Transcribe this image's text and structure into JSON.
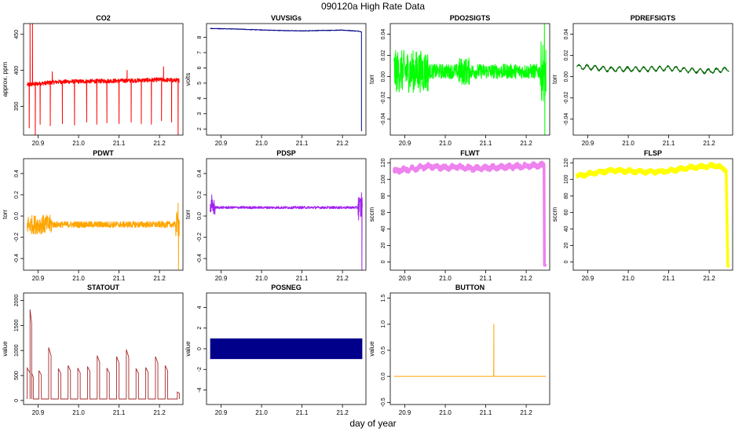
{
  "figure": {
    "title": "090120a   High Rate Data",
    "xlabel": "day of year"
  },
  "chart_data": [
    {
      "type": "line",
      "title": "CO2",
      "ylabel": "approx. ppm",
      "color": "#ff0000",
      "xlim": [
        20.864,
        21.258
      ],
      "ylim": [
        310,
        465
      ],
      "xticks": [
        20.9,
        21.0,
        21.1,
        21.2
      ],
      "yticks": [
        350,
        400,
        450
      ],
      "xticklabels": [
        "20.9",
        "21.0",
        "21.1",
        "21.2"
      ],
      "yticklabels": [
        "350",
        "400",
        "450"
      ],
      "x_start": 20.873,
      "x_end": 21.249,
      "baseline": [
        [
          20.873,
          380
        ],
        [
          20.95,
          384
        ],
        [
          21.05,
          385
        ],
        [
          21.15,
          386
        ],
        [
          21.2,
          387
        ],
        [
          21.245,
          386
        ]
      ],
      "noise": 3,
      "spikes_down": [
        [
          20.878,
          320
        ],
        [
          20.905,
          325
        ],
        [
          20.93,
          323
        ],
        [
          20.96,
          326
        ],
        [
          20.99,
          324
        ],
        [
          21.02,
          328
        ],
        [
          21.045,
          325
        ],
        [
          21.07,
          327
        ],
        [
          21.1,
          326
        ],
        [
          21.13,
          328
        ],
        [
          21.155,
          326
        ],
        [
          21.18,
          325
        ],
        [
          21.205,
          330
        ],
        [
          21.23,
          328
        ],
        [
          21.246,
          310
        ]
      ],
      "spikes_up": [
        [
          20.88,
          465
        ],
        [
          20.886,
          465
        ],
        [
          20.935,
          398
        ],
        [
          21.12,
          400
        ],
        [
          21.21,
          405
        ]
      ],
      "drops": [
        [
          20.893,
          310
        ],
        [
          21.246,
          310
        ]
      ]
    },
    {
      "type": "line",
      "title": "VUVSIGs",
      "ylabel": "volts",
      "color": "#00008b",
      "xlim": [
        20.864,
        21.258
      ],
      "ylim": [
        1.6,
        8.9
      ],
      "xticks": [
        20.9,
        21.0,
        21.1,
        21.2
      ],
      "yticks": [
        2,
        3,
        4,
        5,
        6,
        7,
        8
      ],
      "xticklabels": [
        "20.9",
        "21.0",
        "21.1",
        "21.2"
      ],
      "yticklabels": [
        "2",
        "3",
        "4",
        "5",
        "6",
        "7",
        "8"
      ],
      "x_start": 20.873,
      "x_end": 21.247,
      "baseline": [
        [
          20.873,
          8.58
        ],
        [
          20.93,
          8.55
        ],
        [
          20.98,
          8.5
        ],
        [
          21.04,
          8.45
        ],
        [
          21.1,
          8.42
        ],
        [
          21.15,
          8.45
        ],
        [
          21.2,
          8.47
        ],
        [
          21.24,
          8.4
        ],
        [
          21.246,
          8.35
        ]
      ],
      "noise": 0.02,
      "drops": [
        [
          21.247,
          1.85
        ]
      ]
    },
    {
      "type": "line",
      "title": "PDO2SIGTS",
      "ylabel": "torr",
      "color": "#00ff00",
      "xlim": [
        20.864,
        21.258
      ],
      "ylim": [
        -0.055,
        0.05
      ],
      "xticks": [
        20.9,
        21.0,
        21.1,
        21.2
      ],
      "yticks": [
        -0.04,
        -0.02,
        0.0,
        0.02,
        0.04
      ],
      "xticklabels": [
        "20.9",
        "21.0",
        "21.1",
        "21.2"
      ],
      "yticklabels": [
        "-0.04",
        "-0.02",
        "0.00",
        "0.02",
        "0.04"
      ],
      "x_start": 20.873,
      "x_end": 21.249,
      "baseline": [
        [
          20.873,
          0.005
        ],
        [
          21.249,
          0.005
        ]
      ],
      "noise": 0.007,
      "noise_burst": [
        [
          20.873,
          20.96,
          0.02
        ],
        [
          21.03,
          21.06,
          0.013
        ],
        [
          21.235,
          21.249,
          0.028
        ]
      ],
      "spikes_up": [
        [
          21.245,
          0.05
        ]
      ],
      "drops": [
        [
          21.246,
          -0.055
        ]
      ]
    },
    {
      "type": "line",
      "title": "PDREFSIGTS",
      "ylabel": "torr",
      "color": "#006400",
      "xlim": [
        20.864,
        21.258
      ],
      "ylim": [
        -0.055,
        0.05
      ],
      "xticks": [
        20.9,
        21.0,
        21.1,
        21.2
      ],
      "yticks": [
        -0.04,
        -0.02,
        0.0,
        0.02,
        0.04
      ],
      "xticklabels": [
        "20.9",
        "21.0",
        "21.1",
        "21.2"
      ],
      "yticklabels": [
        "-0.04",
        "-0.02",
        "0.00",
        "0.02",
        "0.04"
      ],
      "x_start": 20.873,
      "x_end": 21.249,
      "baseline": [
        [
          20.873,
          0.009
        ],
        [
          20.9,
          0.009
        ],
        [
          20.95,
          0.007
        ],
        [
          21.0,
          0.007
        ],
        [
          21.05,
          0.007
        ],
        [
          21.1,
          0.008
        ],
        [
          21.15,
          0.006
        ],
        [
          21.2,
          0.005
        ],
        [
          21.249,
          0.007
        ]
      ],
      "noise": 0.0008,
      "wave": [
        0.002,
        0.02
      ]
    },
    {
      "type": "line",
      "title": "PDWT",
      "ylabel": "torr",
      "color": "#ffa500",
      "xlim": [
        20.864,
        21.258
      ],
      "ylim": [
        -0.51,
        0.54
      ],
      "xticks": [
        20.9,
        21.0,
        21.1,
        21.2
      ],
      "yticks": [
        -0.4,
        -0.2,
        0.0,
        0.2,
        0.4
      ],
      "xticklabels": [
        "20.9",
        "21.0",
        "21.1",
        "21.2"
      ],
      "yticklabels": [
        "-0.4",
        "-0.2",
        "0.0",
        "0.2",
        "0.4"
      ],
      "x_start": 20.873,
      "x_end": 21.249,
      "baseline": [
        [
          20.873,
          -0.08
        ],
        [
          21.249,
          -0.08
        ]
      ],
      "noise": 0.03,
      "noise_burst": [
        [
          20.873,
          20.935,
          0.09
        ],
        [
          21.24,
          21.249,
          0.12
        ]
      ],
      "spikes_up": [
        [
          21.246,
          0.12
        ]
      ],
      "drops": [
        [
          21.247,
          -0.51
        ]
      ]
    },
    {
      "type": "line",
      "title": "PDSP",
      "ylabel": "torr",
      "color": "#a020f0",
      "xlim": [
        20.864,
        21.258
      ],
      "ylim": [
        -0.51,
        0.54
      ],
      "xticks": [
        20.9,
        21.0,
        21.1,
        21.2
      ],
      "yticks": [
        -0.4,
        -0.2,
        0.0,
        0.2,
        0.4
      ],
      "xticklabels": [
        "20.9",
        "21.0",
        "21.1",
        "21.2"
      ],
      "yticklabels": [
        "-0.4",
        "-0.2",
        "0.0",
        "0.2",
        "0.4"
      ],
      "x_start": 20.873,
      "x_end": 21.249,
      "baseline": [
        [
          20.873,
          0.08
        ],
        [
          21.249,
          0.08
        ]
      ],
      "noise": 0.012,
      "noise_burst": [
        [
          20.873,
          20.885,
          0.08
        ],
        [
          21.238,
          21.249,
          0.12
        ]
      ],
      "spikes_up": [
        [
          20.877,
          0.2
        ],
        [
          21.247,
          0.22
        ]
      ],
      "drops": [
        [
          21.248,
          -0.51
        ]
      ]
    },
    {
      "type": "line",
      "title": "FLWT",
      "ylabel": "sccm",
      "color": "#ee82ee",
      "xlim": [
        20.864,
        21.258
      ],
      "ylim": [
        -10,
        125
      ],
      "xticks": [
        20.9,
        21.0,
        21.1,
        21.2
      ],
      "yticks": [
        0,
        20,
        40,
        60,
        80,
        100,
        120
      ],
      "xticklabels": [
        "20.9",
        "21.0",
        "21.1",
        "21.2"
      ],
      "yticklabels": [
        "0",
        "20",
        "40",
        "60",
        "80",
        "100",
        "120"
      ],
      "x_start": 20.873,
      "x_end": 21.244,
      "baseline": [
        [
          20.873,
          110
        ],
        [
          20.92,
          113
        ],
        [
          20.96,
          116
        ],
        [
          21.0,
          114
        ],
        [
          21.03,
          115
        ],
        [
          21.07,
          113
        ],
        [
          21.1,
          114
        ],
        [
          21.15,
          115
        ],
        [
          21.2,
          116
        ],
        [
          21.24,
          117
        ]
      ],
      "noise": 2.5,
      "wave": [
        1.5,
        0.02
      ],
      "tail": [
        [
          21.244,
          117
        ],
        [
          21.245,
          -4
        ],
        [
          21.25,
          -4
        ]
      ]
    },
    {
      "type": "line",
      "title": "FLSP",
      "ylabel": "sccm",
      "color": "#ffff00",
      "xlim": [
        20.864,
        21.258
      ],
      "ylim": [
        -10,
        125
      ],
      "xticks": [
        20.9,
        21.0,
        21.1,
        21.2
      ],
      "yticks": [
        0,
        20,
        40,
        60,
        80,
        100,
        120
      ],
      "xticklabels": [
        "20.9",
        "21.0",
        "21.1",
        "21.2"
      ],
      "yticklabels": [
        "0",
        "20",
        "40",
        "60",
        "80",
        "100",
        "120"
      ],
      "x_start": 20.873,
      "x_end": 21.242,
      "baseline": [
        [
          20.873,
          104
        ],
        [
          20.92,
          108
        ],
        [
          20.96,
          111
        ],
        [
          21.0,
          110
        ],
        [
          21.05,
          109
        ],
        [
          21.1,
          110
        ],
        [
          21.15,
          114
        ],
        [
          21.2,
          116
        ],
        [
          21.22,
          117
        ],
        [
          21.235,
          112
        ],
        [
          21.242,
          111
        ]
      ],
      "noise": 2.2,
      "wave": [
        1.2,
        0.025
      ],
      "tail": [
        [
          21.242,
          111
        ],
        [
          21.246,
          -5
        ],
        [
          21.25,
          -5
        ]
      ]
    },
    {
      "type": "line",
      "title": "STATOUT",
      "ylabel": "value",
      "color": "#a52a2a",
      "xlim": [
        20.864,
        21.258
      ],
      "ylim": [
        -80,
        2150
      ],
      "xticks": [
        20.9,
        21.0,
        21.1,
        21.2
      ],
      "yticks": [
        0,
        500,
        1000,
        1500,
        2000
      ],
      "xticklabels": [
        "20.9",
        "21.0",
        "21.1",
        "21.2"
      ],
      "yticklabels": [
        "0",
        "500",
        "1000",
        "1500",
        "2000"
      ],
      "x_start": 20.873,
      "x_end": 21.249,
      "pulses": [
        [
          20.873,
          20.88,
          650
        ],
        [
          20.88,
          20.884,
          1820
        ],
        [
          20.884,
          20.888,
          550
        ],
        [
          20.902,
          20.908,
          600
        ],
        [
          20.926,
          20.932,
          1060
        ],
        [
          20.95,
          20.956,
          640
        ],
        [
          20.974,
          20.98,
          700
        ],
        [
          20.998,
          21.004,
          650
        ],
        [
          21.022,
          21.028,
          680
        ],
        [
          21.046,
          21.052,
          900
        ],
        [
          21.07,
          21.076,
          650
        ],
        [
          21.094,
          21.1,
          880
        ],
        [
          21.118,
          21.124,
          1020
        ],
        [
          21.142,
          21.148,
          640
        ],
        [
          21.166,
          21.172,
          660
        ],
        [
          21.19,
          21.196,
          880
        ],
        [
          21.214,
          21.22,
          700
        ],
        [
          21.244,
          21.249,
          170
        ]
      ],
      "baseline_value": 30
    },
    {
      "type": "area",
      "title": "POSNEG",
      "ylabel": "value",
      "color": "#00008b",
      "xlim": [
        20.864,
        21.258
      ],
      "ylim": [
        -5.4,
        5.4
      ],
      "xticks": [
        20.9,
        21.0,
        21.1,
        21.2
      ],
      "yticks": [
        -4,
        -2,
        0,
        2,
        4
      ],
      "xticklabels": [
        "20.9",
        "21.0",
        "21.1",
        "21.2"
      ],
      "yticklabels": [
        "-4",
        "-2",
        "0",
        "2",
        "4"
      ],
      "x_start": 20.873,
      "x_end": 21.249,
      "band": [
        -1,
        1
      ]
    },
    {
      "type": "line",
      "title": "BUTTON",
      "ylabel": "value",
      "color": "#ffa500",
      "xlim": [
        20.864,
        21.258
      ],
      "ylim": [
        -0.54,
        1.6
      ],
      "xticks": [
        20.9,
        21.0,
        21.1,
        21.2
      ],
      "yticks": [
        -0.5,
        0.0,
        0.5,
        1.0,
        1.5
      ],
      "xticklabels": [
        "20.9",
        "21.0",
        "21.1",
        "21.2"
      ],
      "yticklabels": [
        "-0.5",
        "0.0",
        "0.5",
        "1.0",
        "1.5"
      ],
      "x_start": 20.873,
      "x_end": 21.249,
      "baseline": [
        [
          20.873,
          0
        ],
        [
          21.249,
          0
        ]
      ],
      "noise": 0,
      "spikes_up": [
        [
          21.12,
          1.0
        ]
      ]
    }
  ]
}
